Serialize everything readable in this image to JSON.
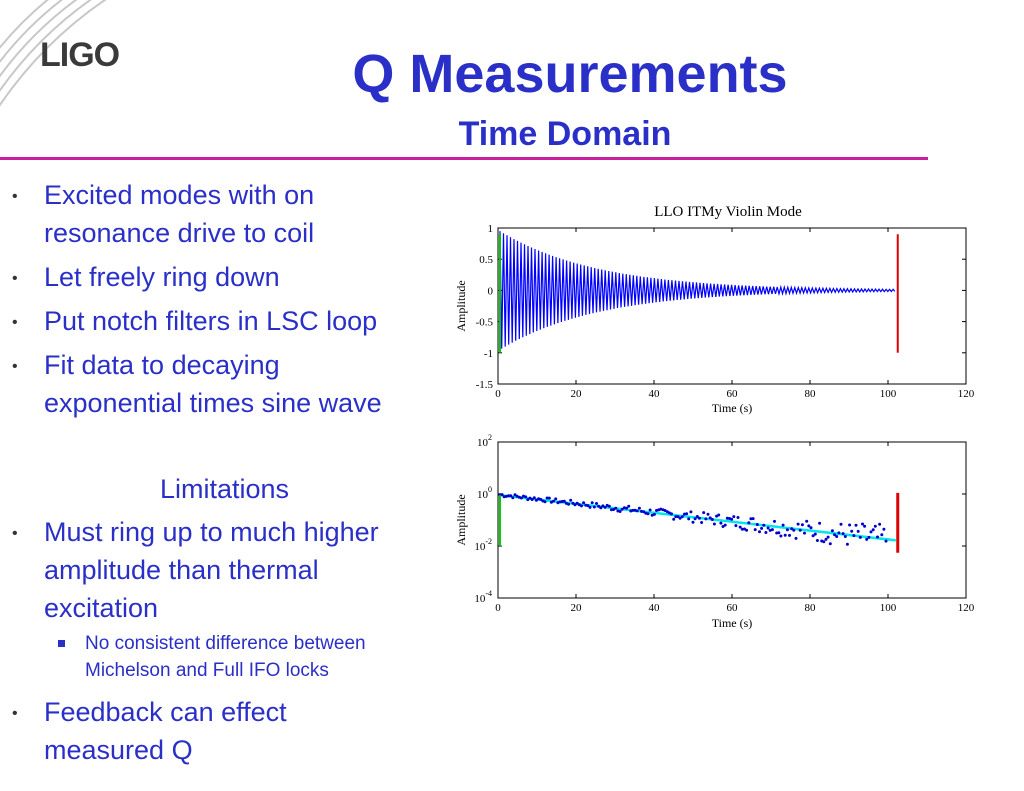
{
  "logo": {
    "text": "LIGO"
  },
  "slide": {
    "title": "Q Measurements",
    "subtitle": "Time Domain",
    "bullets": [
      {
        "lines": [
          "Excited modes with on",
          "resonance drive to coil"
        ]
      },
      {
        "lines": [
          "Let freely ring down"
        ]
      },
      {
        "lines": [
          "Put notch filters in LSC loop"
        ]
      },
      {
        "lines": [
          "Fit data to decaying",
          "exponential times sine wave"
        ]
      }
    ],
    "limitations_heading": "Limitations",
    "limit_bullets": [
      {
        "lines": [
          "Must ring up to much higher",
          "amplitude than thermal",
          "excitation"
        ]
      }
    ],
    "sub_bullets": [
      {
        "lines": [
          "No consistent difference between",
          "Michelson and Full IFO locks"
        ]
      }
    ],
    "last_bullets": [
      {
        "lines": [
          "Feedback can effect",
          "measured Q"
        ]
      }
    ]
  },
  "chart_data": [
    {
      "type": "line",
      "title": "LLO ITMy Violin Mode",
      "xlabel": "Time (s)",
      "ylabel": "Amplitude",
      "xlim": [
        0,
        120
      ],
      "ylim": [
        -1.5,
        1
      ],
      "xticks": [
        "0",
        "20",
        "40",
        "60",
        "80",
        "100",
        "120"
      ],
      "yticks": [
        "1",
        "0.5",
        "0",
        "-0.5",
        "-1",
        "-1.5"
      ],
      "signal": {
        "start_time": 0.5,
        "end_time": 102,
        "initial_amplitude": 0.95,
        "decay_time": 25,
        "color": "#0000ff"
      },
      "markers": [
        {
          "x": 0.5,
          "y1": -1,
          "y2": 0.9,
          "color": "#00cc00"
        },
        {
          "x": 102.5,
          "y1": -1,
          "y2": 0.9,
          "color": "#e00000"
        }
      ]
    },
    {
      "type": "scatter",
      "xlabel": "Time (s)",
      "ylabel": "Amplitude",
      "yscale": "log",
      "xlim": [
        0,
        120
      ],
      "ylim": [
        0.0001,
        100
      ],
      "xticks": [
        "0",
        "20",
        "40",
        "60",
        "80",
        "100",
        "120"
      ],
      "yticks": [
        {
          "base": "10",
          "exp": "2"
        },
        {
          "base": "10",
          "exp": "0"
        },
        {
          "base": "10",
          "exp": "-2"
        },
        {
          "base": "10",
          "exp": "-4"
        }
      ],
      "points": {
        "start_time": 0.5,
        "end_time": 100,
        "initial_amplitude": 0.95,
        "decay_time": 25,
        "color": "#0000cc"
      },
      "fit": {
        "x": [
          0.5,
          102
        ],
        "y": [
          0.9,
          0.0165
        ],
        "color": "#00e5ee"
      },
      "markers": [
        {
          "x": 0.5,
          "y1": 0.01,
          "y2": 0.9,
          "color": "#00cc00"
        },
        {
          "x": 102.5,
          "y1": 0.0055,
          "y2": 1.1,
          "color": "#e00000"
        }
      ]
    }
  ]
}
